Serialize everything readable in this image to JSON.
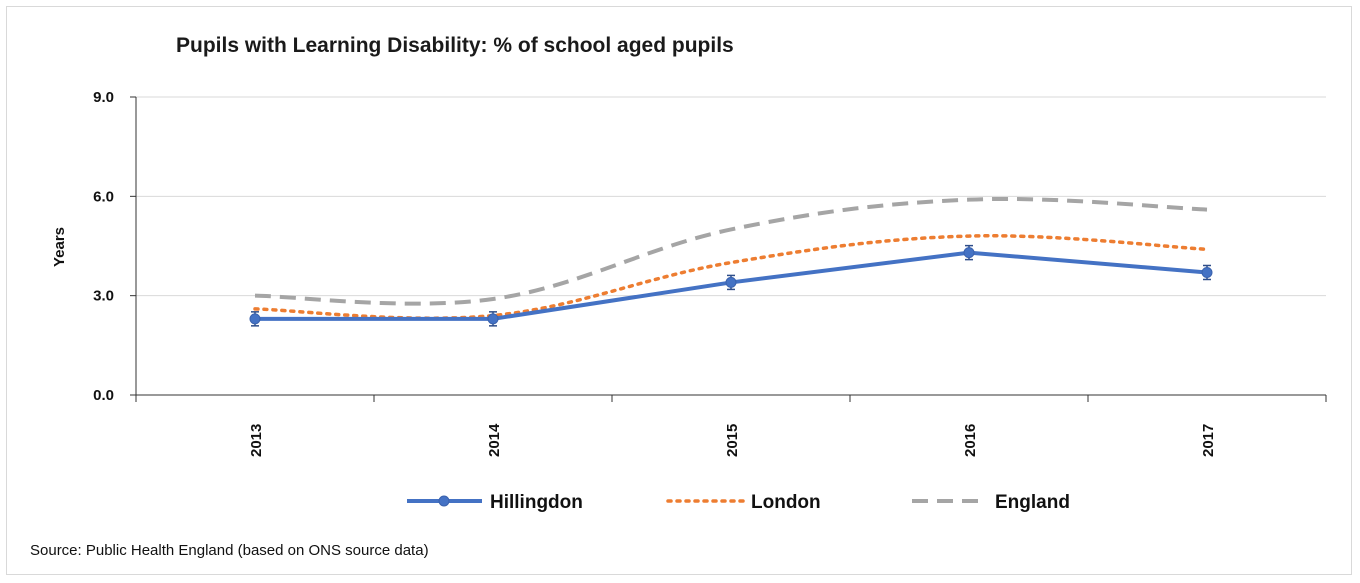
{
  "chart_data": {
    "type": "line",
    "title": "Pupils with Learning Disability: % of school aged pupils",
    "ylabel": "Years",
    "xlabel": "",
    "categories": [
      "2013",
      "2014",
      "2015",
      "2016",
      "2017"
    ],
    "ylim": [
      0,
      9
    ],
    "yticks": [
      "0.0",
      "3.0",
      "6.0",
      "9.0"
    ],
    "grid": true,
    "legend_position": "bottom",
    "series": [
      {
        "name": "Hillingdon",
        "values": [
          2.3,
          2.3,
          3.4,
          4.3,
          3.7
        ],
        "color": "#4472c4",
        "style": "solid-markers"
      },
      {
        "name": "London",
        "values": [
          2.6,
          2.4,
          4.0,
          4.8,
          4.4
        ],
        "color": "#ed7d31",
        "style": "dotted"
      },
      {
        "name": "England",
        "values": [
          3.0,
          2.9,
          5.0,
          5.9,
          5.6
        ],
        "color": "#a5a5a5",
        "style": "dashed"
      }
    ],
    "source": "Source: Public Health England (based on ONS source data)"
  }
}
